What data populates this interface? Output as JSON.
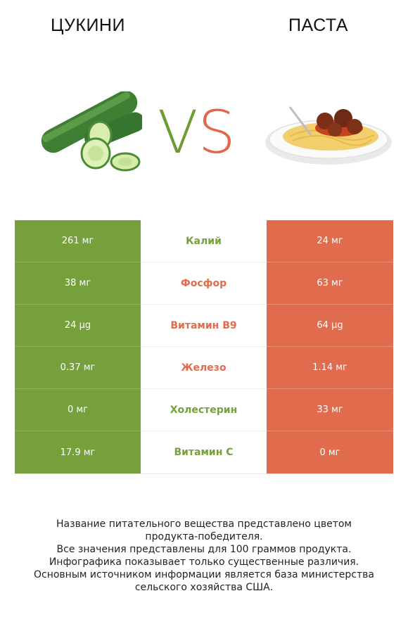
{
  "header": {
    "left_title": "ЦУКИНИ",
    "right_title": "ПАСТА",
    "vs_v": "V",
    "vs_s": "S"
  },
  "colors": {
    "left": "#76a03b",
    "right": "#e16b4d"
  },
  "rows": [
    {
      "left": "261 мг",
      "nutrient": "Калий",
      "right": "24 мг",
      "winner": "left"
    },
    {
      "left": "38 мг",
      "nutrient": "Фосфор",
      "right": "63 мг",
      "winner": "right"
    },
    {
      "left": "24 µg",
      "nutrient": "Витамин B9",
      "right": "64 µg",
      "winner": "right"
    },
    {
      "left": "0.37 мг",
      "nutrient": "Железо",
      "right": "1.14 мг",
      "winner": "right"
    },
    {
      "left": "0 мг",
      "nutrient": "Холестерин",
      "right": "33 мг",
      "winner": "left"
    },
    {
      "left": "17.9 мг",
      "nutrient": "Витамин C",
      "right": "0 мг",
      "winner": "left"
    }
  ],
  "footnote": {
    "line1": "Название питательного вещества представлено цветом",
    "line2": "продукта-победителя.",
    "line3": "Все значения представлены для 100 граммов продукта.",
    "line4": "Инфографика показывает только существенные различия.",
    "line5": "Основным источником информации является база министерства",
    "line6": "сельского хозяйства США."
  }
}
